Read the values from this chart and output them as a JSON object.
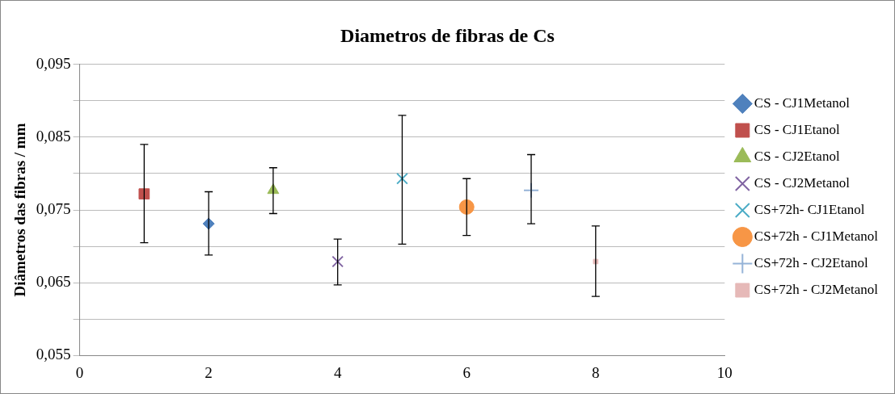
{
  "chart_data": {
    "type": "scatter",
    "title": "Diametros de fibras de Cs",
    "ylabel": "Diâmetros das fibras / mm",
    "xlim": [
      0,
      10
    ],
    "xticks": [
      0,
      2,
      4,
      6,
      8,
      10
    ],
    "ylim": [
      0.055,
      0.095
    ],
    "yticks": [
      {
        "value": 0.055,
        "label": "0,055"
      },
      {
        "value": 0.06,
        "label": null
      },
      {
        "value": 0.065,
        "label": "0,065"
      },
      {
        "value": 0.07,
        "label": null
      },
      {
        "value": 0.075,
        "label": "0,075"
      },
      {
        "value": 0.08,
        "label": null
      },
      {
        "value": 0.085,
        "label": "0,085"
      },
      {
        "value": 0.09,
        "label": null
      },
      {
        "value": 0.095,
        "label": "0,095"
      }
    ],
    "grid": "y",
    "legend": "right",
    "series": [
      {
        "name": "CS - CJ1Metanol",
        "color": "#4f81bd",
        "marker": "diamond",
        "x": [
          2
        ],
        "values": [
          0.0731
        ],
        "errors": [
          [
            0.0688,
            0.0775
          ]
        ]
      },
      {
        "name": "CS - CJ1Etanol",
        "color": "#c0504d",
        "marker": "square",
        "x": [
          1
        ],
        "values": [
          0.0772
        ],
        "errors": [
          [
            0.0705,
            0.084
          ]
        ]
      },
      {
        "name": "CS - CJ2Etanol",
        "color": "#9bbb59",
        "marker": "triangle",
        "x": [
          3
        ],
        "values": [
          0.0777
        ],
        "errors": [
          [
            0.0745,
            0.0808
          ]
        ]
      },
      {
        "name": "CS - CJ2Metanol",
        "color": "#8064a2",
        "marker": "cross",
        "x": [
          4
        ],
        "values": [
          0.0679
        ],
        "errors": [
          [
            0.0647,
            0.071
          ]
        ]
      },
      {
        "name": "CS+72h- CJ1Etanol",
        "color": "#4bacc6",
        "marker": "cross",
        "x": [
          5
        ],
        "values": [
          0.0793
        ],
        "errors": [
          [
            0.0703,
            0.088
          ]
        ]
      },
      {
        "name": "CS+72h - CJ1Metanol",
        "color": "#f79646",
        "marker": "circle",
        "x": [
          6
        ],
        "values": [
          0.0754
        ],
        "errors": [
          [
            0.0715,
            0.0793
          ]
        ]
      },
      {
        "name": "CS+72h - CJ2Etanol",
        "color": "#95b3d7",
        "marker": "plus",
        "x": [
          7
        ],
        "values": [
          0.0777
        ],
        "errors": [
          [
            0.0731,
            0.0826
          ]
        ]
      },
      {
        "name": "CS+72h - CJ2Metanol",
        "color": "#e6b9b8",
        "x": [
          8
        ],
        "values": [
          0.0679
        ],
        "errors": [
          [
            0.0631,
            0.0728
          ]
        ]
      }
    ]
  }
}
